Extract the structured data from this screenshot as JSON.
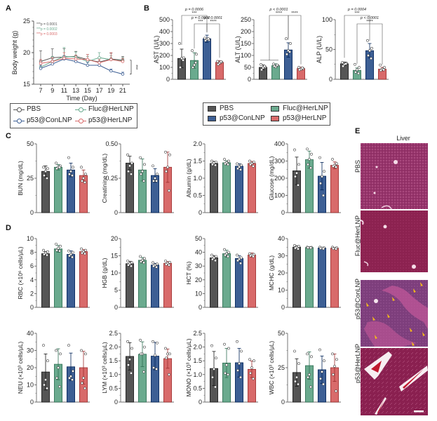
{
  "panels": {
    "A": "A",
    "B": "B",
    "C": "C",
    "D": "D",
    "E": "E"
  },
  "groups": [
    {
      "name": "PBS",
      "color": "#555555"
    },
    {
      "name": "Fluc@HerLNP",
      "color": "#6aaa8e"
    },
    {
      "name": "p53@ConLNP",
      "color": "#3d5f94"
    },
    {
      "name": "p53@HerLNP",
      "color": "#d86a6a"
    }
  ],
  "legend_B": {
    "items": [
      "PBS",
      "Fluc@HerLNP",
      "p53@ConLNP",
      "p53@HerLNP"
    ]
  },
  "legend_A": {
    "items": [
      "PBS",
      "Fluc@HerLNP",
      "p53@ConLNP",
      "p53@HerLNP"
    ]
  },
  "chart_data": [
    {
      "id": "A",
      "type": "line",
      "title": "",
      "xlabel": "Time (Day)",
      "ylabel": "Body weight (g)",
      "x": [
        7,
        9,
        11,
        13,
        15,
        17,
        19,
        21
      ],
      "xticks": [
        "7",
        "9",
        "11",
        "13",
        "15",
        "17",
        "19",
        "21"
      ],
      "ylim": [
        15,
        25
      ],
      "yticks": [
        15,
        20,
        25
      ],
      "annotations": [
        {
          "text": "***p = 0.0001",
          "color": "#555555"
        },
        {
          "text": "***p = 0.0002",
          "color": "#6aaa8e"
        },
        {
          "text": "***p = 0.0003",
          "color": "#d86a6a"
        }
      ],
      "bracket_label": "***",
      "series": [
        {
          "name": "PBS",
          "color": "#555555",
          "values": [
            18.6,
            19.2,
            19.3,
            19.4,
            18.9,
            18.5,
            19.0,
            18.8
          ],
          "err": [
            1.7,
            1.4,
            1.3,
            0.8,
            0.8,
            0.6,
            0.9,
            0.6
          ]
        },
        {
          "name": "Fluc@HerLNP",
          "color": "#6aaa8e",
          "values": [
            17.7,
            18.6,
            19.4,
            19.3,
            18.6,
            19.2,
            18.9,
            18.7
          ],
          "err": [
            0.6,
            0.8,
            1.4,
            0.8,
            0.8,
            0.8,
            0.6,
            0.5
          ]
        },
        {
          "name": "p53@ConLNP",
          "color": "#3d5f94",
          "values": [
            17.5,
            18.2,
            19.0,
            18.6,
            18.0,
            18.0,
            17.1,
            16.6
          ],
          "err": [
            0.5,
            0.6,
            0.5,
            0.5,
            0.5,
            0.5,
            0.3,
            0.3
          ]
        },
        {
          "name": "p53@HerLNP",
          "color": "#d86a6a",
          "values": [
            18.3,
            18.6,
            19.1,
            19.0,
            18.9,
            18.4,
            18.9,
            18.6
          ],
          "err": [
            0.6,
            0.6,
            0.9,
            0.6,
            0.8,
            0.5,
            1.1,
            0.5
          ]
        }
      ]
    },
    {
      "id": "AST",
      "type": "bar",
      "ylabel": "AST (U/L)",
      "ylim": [
        0,
        500
      ],
      "yticks": [
        0,
        100,
        200,
        300,
        400,
        500
      ],
      "categories": [
        "PBS",
        "Fluc@HerLNP",
        "p53@ConLNP",
        "p53@HerLNP"
      ],
      "values": [
        175,
        158,
        340,
        142
      ],
      "err": [
        78,
        65,
        30,
        15
      ],
      "points": [
        [
          300,
          180,
          175,
          100,
          160
        ],
        [
          240,
          210,
          120,
          100,
          140
        ],
        [
          345,
          330,
          335,
          325,
          340
        ],
        [
          150,
          145,
          135,
          125,
          148
        ]
      ],
      "significance": [
        {
          "from": 0,
          "to": 2,
          "p": "p = 0.0006",
          "stars": "***",
          "level": 0
        },
        {
          "from": 1,
          "to": 2,
          "p": "p = 0.0002",
          "stars": "***",
          "level": 1
        },
        {
          "from": 2,
          "to": 3,
          "p": "p < 0.0001",
          "stars": "****",
          "level": 1
        }
      ]
    },
    {
      "id": "ALT",
      "type": "bar",
      "ylabel": "ALT (U/L)",
      "ylim": [
        0,
        250
      ],
      "yticks": [
        0,
        50,
        100,
        150,
        200,
        250
      ],
      "categories": [
        "PBS",
        "Fluc@HerLNP",
        "p53@ConLNP",
        "p53@HerLNP"
      ],
      "values": [
        50,
        57,
        123,
        45
      ],
      "err": [
        10,
        8,
        30,
        6
      ],
      "points": [
        [
          62,
          52,
          48,
          40,
          55
        ],
        [
          64,
          58,
          52,
          55,
          60
        ],
        [
          170,
          150,
          120,
          105,
          115
        ],
        [
          50,
          45,
          42,
          40,
          48
        ]
      ],
      "significance": [
        {
          "from": "0-1",
          "to": 2,
          "p": "p < 0.0001",
          "stars": "****",
          "level": 0
        },
        {
          "from": 2,
          "to": 3,
          "p": "",
          "stars": "****",
          "level": 0
        }
      ]
    },
    {
      "id": "ALP",
      "type": "bar",
      "ylabel": "ALP (U/L)",
      "ylim": [
        0,
        100
      ],
      "yticks": [
        0,
        50,
        100
      ],
      "categories": [
        "PBS",
        "Fluc@HerLNP",
        "p53@ConLNP",
        "p53@HerLNP"
      ],
      "values": [
        26,
        15,
        48,
        17
      ],
      "err": [
        3,
        4,
        12,
        3
      ],
      "points": [
        [
          28,
          27,
          25,
          22,
          26
        ],
        [
          25,
          20,
          16,
          12,
          10
        ],
        [
          65,
          52,
          48,
          40,
          35
        ],
        [
          24,
          20,
          17,
          15,
          16
        ]
      ],
      "significance": [
        {
          "from": 0,
          "to": 2,
          "p": "p = 0.0004",
          "stars": "***",
          "level": 0
        },
        {
          "from": 1,
          "to": 3,
          "p": "p < 0.0001",
          "stars": "****",
          "level": 1
        }
      ]
    },
    {
      "id": "BUN",
      "type": "bar",
      "ylabel": "BUN (mg/dL)",
      "ylim": [
        0,
        50
      ],
      "yticks": [
        0,
        25,
        50
      ],
      "categories": [
        "PBS",
        "Fluc@HerLNP",
        "p53@ConLNP",
        "p53@HerLNP"
      ],
      "values": [
        30,
        33,
        31,
        27
      ],
      "err": [
        4,
        2,
        5,
        4
      ],
      "points": [
        [
          33,
          32,
          30,
          27,
          25
        ],
        [
          36,
          34,
          33,
          32,
          33
        ],
        [
          40,
          33,
          30,
          28,
          27
        ],
        [
          33,
          28,
          25,
          23,
          22
        ]
      ]
    },
    {
      "id": "Creatinine",
      "type": "bar",
      "ylabel": "Creatinine (mg/dL)",
      "ylim": [
        0,
        0.5
      ],
      "yticks": [
        "0",
        "0.25",
        "0.50"
      ],
      "ytickvals": [
        0,
        0.25,
        0.5
      ],
      "categories": [
        "PBS",
        "Fluc@HerLNP",
        "p53@ConLNP",
        "p53@HerLNP"
      ],
      "values": [
        0.36,
        0.31,
        0.27,
        0.33
      ],
      "err": [
        0.05,
        0.08,
        0.05,
        0.11
      ],
      "points": [
        [
          0.42,
          0.36,
          0.34,
          0.3,
          0.28
        ],
        [
          0.4,
          0.35,
          0.3,
          0.28,
          0.23
        ],
        [
          0.34,
          0.28,
          0.25,
          0.23,
          0.23
        ],
        [
          0.44,
          0.42,
          0.33,
          0.3,
          0.16
        ]
      ]
    },
    {
      "id": "Albumin",
      "type": "bar",
      "ylabel": "Albumin (g/dL)",
      "ylim": [
        0,
        2.0
      ],
      "yticks": [
        "0",
        "0.5",
        "1.0",
        "1.5",
        "2.0"
      ],
      "ytickvals": [
        0,
        0.5,
        1.0,
        1.5,
        2.0
      ],
      "categories": [
        "PBS",
        "Fluc@HerLNP",
        "p53@ConLNP",
        "p53@HerLNP"
      ],
      "values": [
        1.43,
        1.45,
        1.35,
        1.43
      ],
      "err": [
        0.06,
        0.06,
        0.07,
        0.06
      ],
      "points": [
        [
          1.5,
          1.47,
          1.45,
          1.4,
          1.38
        ],
        [
          1.55,
          1.5,
          1.45,
          1.42,
          1.4
        ],
        [
          1.42,
          1.38,
          1.33,
          1.28,
          1.25
        ],
        [
          1.5,
          1.47,
          1.43,
          1.4,
          1.35
        ]
      ]
    },
    {
      "id": "Glucose",
      "type": "bar",
      "ylabel": "Glucose (mg/dL)",
      "ylim": [
        0,
        400
      ],
      "yticks": [
        0,
        100,
        200,
        300,
        400
      ],
      "categories": [
        "PBS",
        "Fluc@HerLNP",
        "p53@ConLNP",
        "p53@HerLNP"
      ],
      "values": [
        243,
        308,
        212,
        275
      ],
      "err": [
        80,
        50,
        80,
        20
      ],
      "points": [
        [
          365,
          280,
          230,
          210,
          160
        ],
        [
          370,
          340,
          310,
          280,
          260
        ],
        [
          320,
          240,
          210,
          170,
          100
        ],
        [
          310,
          285,
          275,
          270,
          265
        ]
      ]
    },
    {
      "id": "RBC",
      "type": "bar",
      "ylabel": "RBC (×10⁶ cells/μL)",
      "ylim": [
        0,
        10
      ],
      "yticks": [
        0,
        2,
        4,
        6,
        8,
        10
      ],
      "categories": [
        "PBS",
        "Fluc@HerLNP",
        "p53@ConLNP",
        "p53@HerLNP"
      ],
      "values": [
        7.8,
        8.5,
        7.7,
        8.1
      ],
      "err": [
        0.3,
        0.5,
        0.5,
        0.3
      ],
      "points": [
        [
          8.3,
          8.1,
          7.9,
          7.7,
          7.6
        ],
        [
          9.2,
          8.9,
          8.6,
          8.3,
          8.2
        ],
        [
          8.2,
          8.0,
          7.7,
          7.5,
          7.3
        ],
        [
          8.5,
          8.3,
          8.1,
          7.9,
          7.8
        ]
      ]
    },
    {
      "id": "HGB",
      "type": "bar",
      "ylabel": "HGB (g/dL)",
      "ylim": [
        0,
        20
      ],
      "yticks": [
        0,
        5,
        10,
        15,
        20
      ],
      "categories": [
        "PBS",
        "Fluc@HerLNP",
        "p53@ConLNP",
        "p53@HerLNP"
      ],
      "values": [
        12.7,
        13.7,
        12.3,
        12.8
      ],
      "err": [
        0.7,
        0.8,
        0.5,
        0.5
      ],
      "points": [
        [
          13.5,
          13.0,
          12.7,
          12.3,
          12.0
        ],
        [
          14.8,
          14.2,
          13.7,
          13.3,
          13.0
        ],
        [
          13.0,
          12.6,
          12.3,
          12.0,
          11.7
        ],
        [
          13.5,
          13.1,
          12.8,
          12.5,
          12.3
        ]
      ]
    },
    {
      "id": "HCT",
      "type": "bar",
      "ylabel": "HCT (%)",
      "ylim": [
        0,
        50
      ],
      "yticks": [
        0,
        10,
        20,
        30,
        40,
        50
      ],
      "categories": [
        "PBS",
        "Fluc@HerLNP",
        "p53@ConLNP",
        "p53@HerLNP"
      ],
      "values": [
        36,
        39,
        35.5,
        38
      ],
      "err": [
        1.5,
        2.5,
        2,
        1.5
      ],
      "points": [
        [
          38,
          37,
          36,
          35,
          34
        ],
        [
          42,
          40,
          39,
          38,
          37
        ],
        [
          38,
          36,
          35,
          34,
          32
        ],
        [
          39,
          38.5,
          38,
          37.5,
          37
        ]
      ]
    },
    {
      "id": "MCHC",
      "type": "bar",
      "ylabel": "MCHC (g/dL)",
      "ylim": [
        0,
        40
      ],
      "yticks": [
        0,
        10,
        20,
        30,
        40
      ],
      "categories": [
        "PBS",
        "Fluc@HerLNP",
        "p53@ConLNP",
        "p53@HerLNP"
      ],
      "values": [
        35,
        34.8,
        34.5,
        34.4
      ],
      "err": [
        0.8,
        0.3,
        0.4,
        0.4
      ],
      "points": [
        [
          36,
          35.5,
          35,
          34.5,
          34
        ],
        [
          35,
          34.9,
          34.8,
          34.7,
          34.6
        ],
        [
          35,
          34.7,
          34.5,
          34.3,
          34.1
        ],
        [
          35,
          34.7,
          34.4,
          34.2,
          34
        ]
      ]
    },
    {
      "id": "NEU",
      "type": "bar",
      "ylabel": "NEU (×10³ cells/μL)",
      "ylim": [
        0,
        40
      ],
      "yticks": [
        0,
        10,
        20,
        30,
        40
      ],
      "categories": [
        "PBS",
        "Fluc@HerLNP",
        "p53@ConLNP",
        "p53@HerLNP"
      ],
      "values": [
        17.5,
        22,
        20.5,
        20
      ],
      "err": [
        10.5,
        9,
        8,
        9.5
      ],
      "points": [
        [
          33,
          24,
          13,
          10,
          8
        ],
        [
          30,
          28,
          20,
          14,
          9
        ],
        [
          33,
          18,
          15,
          14,
          13
        ],
        [
          30,
          28,
          14,
          11,
          8
        ]
      ]
    },
    {
      "id": "LYM",
      "type": "bar",
      "ylabel": "LYM (×10³ cells/μL)",
      "ylim": [
        0,
        2.5
      ],
      "yticks": [
        "0",
        "0.5",
        "1.0",
        "1.5",
        "2.0",
        "2.5"
      ],
      "ytickvals": [
        0,
        0.5,
        1.0,
        1.5,
        2.0,
        2.5
      ],
      "categories": [
        "PBS",
        "Fluc@HerLNP",
        "p53@ConLNP",
        "p53@HerLNP"
      ],
      "values": [
        1.66,
        1.74,
        1.67,
        1.58
      ],
      "err": [
        0.5,
        0.45,
        0.5,
        0.35
      ],
      "points": [
        [
          2.2,
          1.95,
          1.55,
          1.35,
          1.05
        ],
        [
          2.25,
          2.0,
          1.75,
          1.75,
          1.1
        ],
        [
          2.2,
          2.15,
          1.7,
          1.25,
          1.2
        ],
        [
          1.95,
          1.75,
          1.75,
          1.6,
          1.0
        ]
      ]
    },
    {
      "id": "MONO",
      "type": "bar",
      "ylabel": "MONO (×10³ cells/μL)",
      "ylim": [
        0,
        2.5
      ],
      "yticks": [
        "0",
        "0.5",
        "1.0",
        "1.5",
        "2.0",
        "2.5"
      ],
      "ytickvals": [
        0,
        0.5,
        1.0,
        1.5,
        2.0,
        2.5
      ],
      "categories": [
        "PBS",
        "Fluc@HerLNP",
        "p53@ConLNP",
        "p53@HerLNP"
      ],
      "values": [
        1.22,
        1.42,
        1.43,
        1.19
      ],
      "err": [
        0.62,
        0.53,
        0.52,
        0.3
      ],
      "points": [
        [
          2.05,
          1.6,
          1.2,
          0.9,
          0.55
        ],
        [
          2.1,
          1.95,
          1.35,
          1.05,
          1.0
        ],
        [
          2.2,
          1.85,
          1.4,
          1.15,
          0.9
        ],
        [
          1.55,
          1.5,
          1.25,
          1.05,
          0.85
        ]
      ]
    },
    {
      "id": "WBC",
      "type": "bar",
      "ylabel": "WBC (×10³ cells/μL)",
      "ylim": [
        0,
        50
      ],
      "yticks": [
        0,
        25,
        50
      ],
      "categories": [
        "PBS",
        "Fluc@HerLNP",
        "p53@ConLNP",
        "p53@HerLNP"
      ],
      "values": [
        21.5,
        26.5,
        23.5,
        25
      ],
      "err": [
        10,
        10,
        10,
        10
      ],
      "points": [
        [
          37,
          28,
          18,
          15,
          13
        ],
        [
          35,
          33,
          20,
          18,
          11
        ],
        [
          38,
          30,
          22,
          17,
          13
        ],
        [
          35,
          31,
          26,
          20,
          8
        ]
      ]
    }
  ],
  "histology": {
    "title": "Liver",
    "rows": [
      "PBS",
      "Fluc@HerLNP",
      "p53@ConLNP",
      "p53@HerLNP"
    ]
  }
}
